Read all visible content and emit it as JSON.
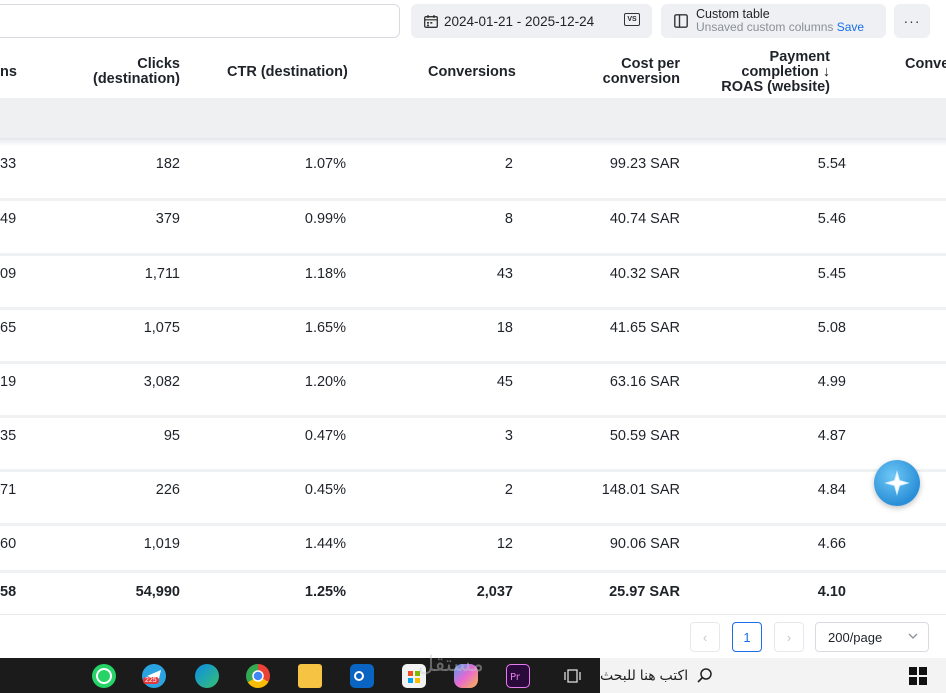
{
  "toolbar": {
    "date_range": "2024-01-21 - 2025-12-24",
    "compare_label": "VS",
    "custom_title": "Custom table",
    "custom_subtitle": "Unsaved custom columns",
    "save_label": "Save",
    "more_label": "···"
  },
  "table": {
    "columns": [
      {
        "key": "partial",
        "label": "ns"
      },
      {
        "key": "clicks",
        "label_line1": "Clicks",
        "label_line2": "(destination)"
      },
      {
        "key": "ctr",
        "label": "CTR (destination)"
      },
      {
        "key": "conversions",
        "label": "Conversions"
      },
      {
        "key": "cpc",
        "label_line1": "Cost per",
        "label_line2": "conversion"
      },
      {
        "key": "roas",
        "label_line1": "Payment",
        "label_line2": "completion ↓",
        "label_line3": "ROAS (website)"
      },
      {
        "key": "conv2",
        "label": "Conve"
      }
    ],
    "rows": [
      {
        "partial": "33",
        "clicks": "182",
        "ctr": "1.07%",
        "conversions": "2",
        "cpc": "99.23 SAR",
        "roas": "5.54"
      },
      {
        "partial": "49",
        "clicks": "379",
        "ctr": "0.99%",
        "conversions": "8",
        "cpc": "40.74 SAR",
        "roas": "5.46"
      },
      {
        "partial": "09",
        "clicks": "1,711",
        "ctr": "1.18%",
        "conversions": "43",
        "cpc": "40.32 SAR",
        "roas": "5.45"
      },
      {
        "partial": "65",
        "clicks": "1,075",
        "ctr": "1.65%",
        "conversions": "18",
        "cpc": "41.65 SAR",
        "roas": "5.08"
      },
      {
        "partial": "19",
        "clicks": "3,082",
        "ctr": "1.20%",
        "conversions": "45",
        "cpc": "63.16 SAR",
        "roas": "4.99"
      },
      {
        "partial": "35",
        "clicks": "95",
        "ctr": "0.47%",
        "conversions": "3",
        "cpc": "50.59 SAR",
        "roas": "4.87"
      },
      {
        "partial": "71",
        "clicks": "226",
        "ctr": "0.45%",
        "conversions": "2",
        "cpc": "148.01 SAR",
        "roas": "4.84"
      },
      {
        "partial": "60",
        "clicks": "1,019",
        "ctr": "1.44%",
        "conversions": "12",
        "cpc": "90.06 SAR",
        "roas": "4.66"
      }
    ],
    "total": {
      "partial": "58",
      "clicks": "54,990",
      "ctr": "1.25%",
      "conversions": "2,037",
      "cpc": "25.97 SAR",
      "roas": "4.10"
    }
  },
  "pagination": {
    "prev": "‹",
    "current_page": "1",
    "next": "›",
    "page_size": "200/page"
  },
  "taskbar": {
    "search_placeholder": "اكتب هنا للبحث",
    "telegram_badge": "225",
    "apps": [
      "whatsapp-icon",
      "telegram-icon",
      "edge-icon",
      "chrome-icon",
      "file-explorer-icon",
      "outlook-icon",
      "store-icon",
      "copilot-icon",
      "premiere-icon",
      "task-view-icon"
    ]
  },
  "watermark": "مستقل",
  "colors": {
    "accent": "#1a6eea",
    "toolbar_button_bg": "#eef0f3",
    "row_separator": "#f0f1f3",
    "taskbar_bg": "#1b1b1b"
  }
}
